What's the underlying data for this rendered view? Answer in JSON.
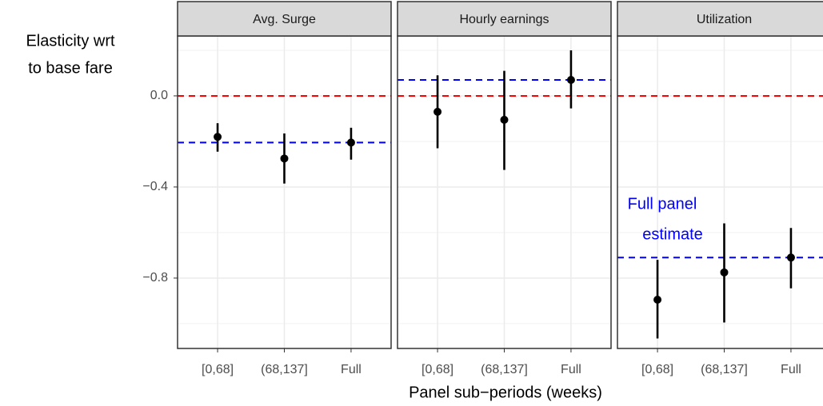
{
  "chart_data": {
    "type": "pointrange",
    "y_label": [
      "Elasticity wrt",
      "to base fare"
    ],
    "x_label": "Panel sub−periods (weeks)",
    "ylim": [
      -1.109,
      0.263
    ],
    "yticks": [
      {
        "value": 0.0,
        "label": "0.0"
      },
      {
        "value": -0.4,
        "label": "−0.4"
      },
      {
        "value": -0.8,
        "label": "−0.8"
      }
    ],
    "minor_yticks": [
      0.2,
      -0.2,
      -0.6,
      -1.0
    ],
    "grid": true,
    "zero_line_color": "#ff0000",
    "estimate_line_color": "#0000ff",
    "point_color": "#000000",
    "facets": [
      {
        "title": "Avg. Surge",
        "categories": [
          "[0,68]",
          "(68,137]",
          "Full"
        ],
        "values": [
          -0.18,
          -0.275,
          -0.205
        ],
        "lower": [
          -0.245,
          -0.385,
          -0.28
        ],
        "upper": [
          -0.12,
          -0.165,
          -0.14
        ],
        "zero_line": 0,
        "estimate_line": -0.205
      },
      {
        "title": "Hourly earnings",
        "categories": [
          "[0,68]",
          "(68,137]",
          "Full"
        ],
        "values": [
          -0.07,
          -0.105,
          0.07
        ],
        "lower": [
          -0.23,
          -0.325,
          -0.055
        ],
        "upper": [
          0.09,
          0.11,
          0.2
        ],
        "zero_line": 0,
        "estimate_line": 0.07
      },
      {
        "title": "Utilization",
        "categories": [
          "[0,68]",
          "(68,137]",
          "Full"
        ],
        "values": [
          -0.895,
          -0.775,
          -0.71
        ],
        "lower": [
          -1.065,
          -0.995,
          -0.845
        ],
        "upper": [
          -0.72,
          -0.56,
          -0.58
        ],
        "zero_line": 0,
        "estimate_line": -0.71,
        "annotation": [
          "Full panel",
          "estimate"
        ]
      }
    ]
  }
}
